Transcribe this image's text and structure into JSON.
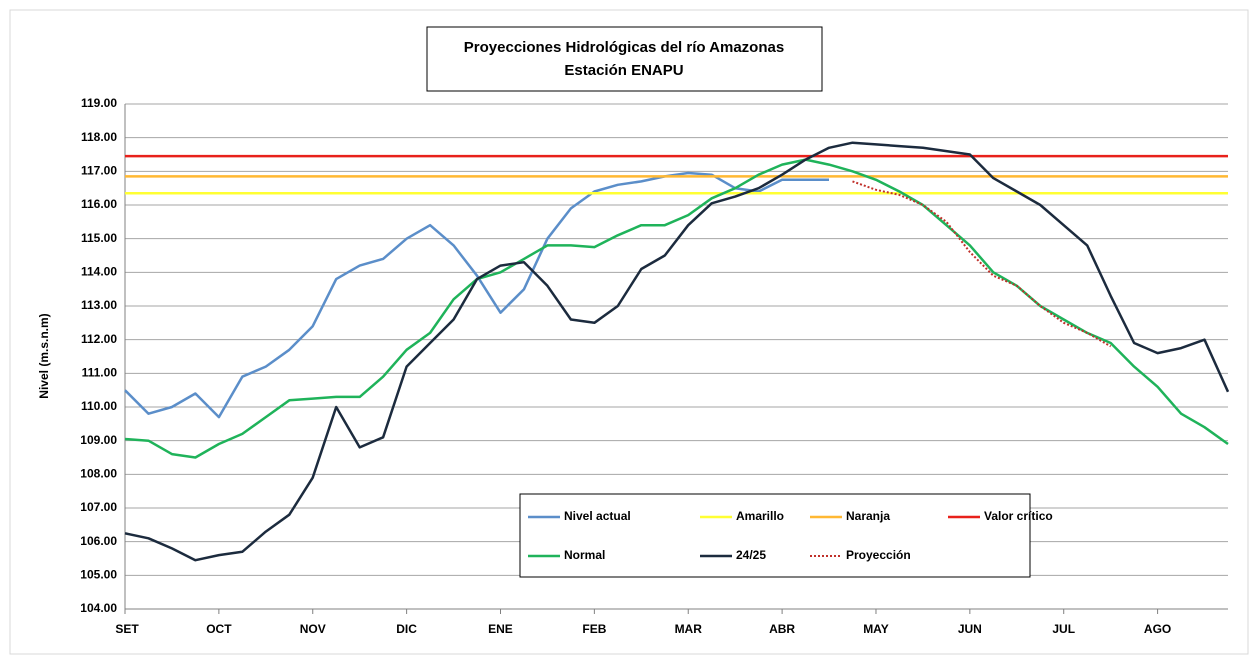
{
  "chart_data": {
    "type": "line",
    "title": "Proyecciones Hidrológicas del río Amazonas",
    "subtitle": "Estación ENAPU",
    "y_label": "Nivel (m.s.n.m)",
    "categories": [
      "SET",
      null,
      null,
      null,
      "OCT",
      null,
      null,
      null,
      "NOV",
      null,
      null,
      null,
      "DIC",
      null,
      null,
      null,
      "ENE",
      null,
      null,
      null,
      "FEB",
      null,
      null,
      null,
      "MAR",
      null,
      null,
      null,
      "ABR",
      null,
      null,
      null,
      "MAY",
      null,
      null,
      null,
      "JUN",
      null,
      null,
      null,
      "JUL",
      null,
      null,
      null,
      "AGO",
      null,
      null,
      null
    ],
    "ylim": [
      104,
      119
    ],
    "yticks": [
      {
        "value": 104,
        "label": "104.00"
      },
      {
        "value": 105,
        "label": "105.00"
      },
      {
        "value": 106,
        "label": "106.00"
      },
      {
        "value": 107,
        "label": "107.00"
      },
      {
        "value": 108,
        "label": "108.00"
      },
      {
        "value": 109,
        "label": "109.00"
      },
      {
        "value": 110,
        "label": "110.00"
      },
      {
        "value": 111,
        "label": "111.00"
      },
      {
        "value": 112,
        "label": "112.00"
      },
      {
        "value": 113,
        "label": "113.00"
      },
      {
        "value": 114,
        "label": "114.00"
      },
      {
        "value": 115,
        "label": "115.00"
      },
      {
        "value": 116,
        "label": "116.00"
      },
      {
        "value": 117,
        "label": "117.00"
      },
      {
        "value": 118,
        "label": "118.00"
      },
      {
        "value": 119,
        "label": "119.00"
      }
    ],
    "grid": true,
    "legend": "bottom-center",
    "series": [
      {
        "name": "Nivel actual",
        "color": "#5b8ec9",
        "values": [
          110.5,
          109.8,
          110.0,
          110.4,
          109.7,
          110.9,
          111.2,
          111.7,
          112.4,
          113.8,
          114.2,
          114.4,
          115.0,
          115.4,
          114.8,
          113.9,
          112.8,
          113.5,
          115.0,
          115.9,
          116.4,
          116.6,
          116.7,
          116.85,
          116.95,
          116.9,
          116.5,
          116.4,
          116.75,
          116.75,
          116.75,
          null,
          null,
          null,
          null,
          null,
          null,
          null,
          null,
          null,
          null,
          null,
          null,
          null,
          null,
          null,
          null,
          null
        ]
      },
      {
        "name": "Amarillo",
        "color": "#ffff33",
        "value": 116.35
      },
      {
        "name": "Naranja",
        "color": "#ffb833",
        "value": 116.85
      },
      {
        "name": "Valor crítico",
        "color": "#e8211b",
        "value": 117.45
      },
      {
        "name": "Normal",
        "color": "#1fb35a",
        "values": [
          109.05,
          109.0,
          108.6,
          108.5,
          108.9,
          109.2,
          109.7,
          110.2,
          110.25,
          110.3,
          110.3,
          110.9,
          111.7,
          112.2,
          113.2,
          113.8,
          114.0,
          114.4,
          114.8,
          114.8,
          114.75,
          115.1,
          115.4,
          115.4,
          115.7,
          116.2,
          116.5,
          116.9,
          117.2,
          117.35,
          117.2,
          117.0,
          116.75,
          116.4,
          116.0,
          115.4,
          114.8,
          114.0,
          113.6,
          113.0,
          112.6,
          112.2,
          111.9,
          111.2,
          110.6,
          109.8,
          109.4,
          108.9
        ]
      },
      {
        "name": "24/25",
        "color": "#1c2b3e",
        "values": [
          106.25,
          106.1,
          105.8,
          105.45,
          105.6,
          105.7,
          106.3,
          106.8,
          107.9,
          110.0,
          108.8,
          109.1,
          111.2,
          111.9,
          112.6,
          113.8,
          114.2,
          114.3,
          113.6,
          112.6,
          112.5,
          113.0,
          114.1,
          114.5,
          115.4,
          116.05,
          116.25,
          116.5,
          116.9,
          117.35,
          117.7,
          117.85,
          117.8,
          117.75,
          117.7,
          117.6,
          117.5,
          116.8,
          116.4,
          116.0,
          115.4,
          114.8,
          113.3,
          111.9,
          111.6,
          111.75,
          112.0,
          110.45
        ]
      },
      {
        "name": "Proyección",
        "color": "#c0302a",
        "dashed": true,
        "values": [
          null,
          null,
          null,
          null,
          null,
          null,
          null,
          null,
          null,
          null,
          null,
          null,
          null,
          null,
          null,
          null,
          null,
          null,
          null,
          null,
          null,
          null,
          null,
          null,
          null,
          null,
          null,
          null,
          null,
          null,
          null,
          116.7,
          116.45,
          116.3,
          116.0,
          115.5,
          114.6,
          113.9,
          113.6,
          113.0,
          112.5,
          112.2,
          111.8,
          null,
          null,
          null,
          null,
          null
        ]
      }
    ]
  }
}
